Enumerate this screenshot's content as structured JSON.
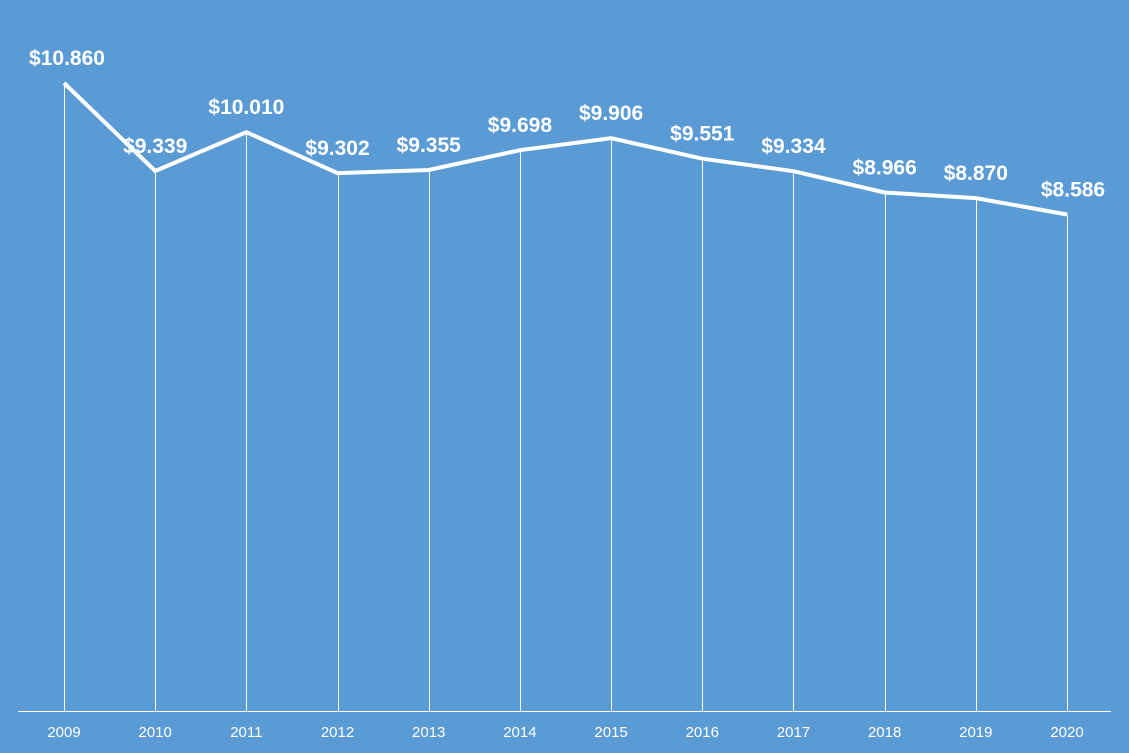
{
  "chart_data": {
    "type": "line",
    "title": "",
    "xlabel": "",
    "ylabel": "",
    "categories": [
      "2009",
      "2010",
      "2011",
      "2012",
      "2013",
      "2014",
      "2015",
      "2016",
      "2017",
      "2018",
      "2019",
      "2020"
    ],
    "series": [
      {
        "values": [
          10.86,
          9.339,
          10.01,
          9.302,
          9.355,
          9.698,
          9.906,
          9.551,
          9.334,
          8.966,
          8.87,
          8.586
        ],
        "labels": [
          "$10.860",
          "$9.339",
          "$10.010",
          "$9.302",
          "$9.355",
          "$9.698",
          "$9.906",
          "$9.551",
          "$9.334",
          "$8.966",
          "$8.870",
          "$8.586"
        ]
      }
    ],
    "ylim": [
      0,
      10.86
    ],
    "grid": false,
    "legend": "none",
    "drop_lines": true
  },
  "colors": {
    "background": "#5b9bd5",
    "line": "#ffffff",
    "text": "#ffffff"
  }
}
